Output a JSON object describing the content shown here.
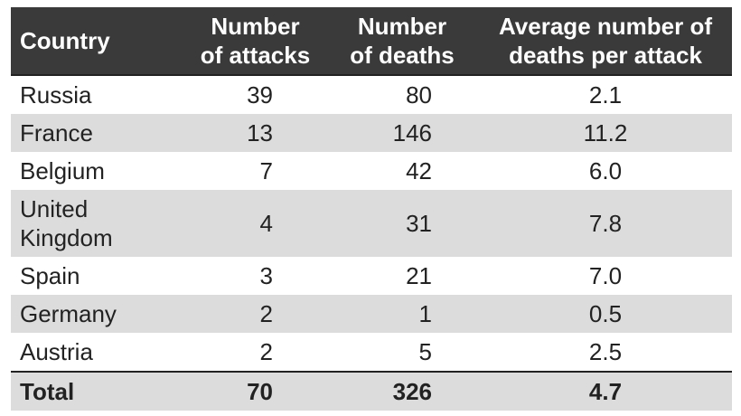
{
  "table": {
    "headers": [
      [
        "Country"
      ],
      [
        "Number",
        "of attacks"
      ],
      [
        "Number",
        "of deaths"
      ],
      [
        "Average number of",
        "deaths per attack"
      ]
    ],
    "rows": [
      [
        "Russia",
        "39",
        "80",
        "2.1"
      ],
      [
        "France",
        "13",
        "146",
        "11.2"
      ],
      [
        "Belgium",
        "7",
        "42",
        "6.0"
      ],
      [
        "United Kingdom",
        "4",
        "31",
        "7.8"
      ],
      [
        "Spain",
        "3",
        "21",
        "7.0"
      ],
      [
        "Germany",
        "2",
        "1",
        "0.5"
      ],
      [
        "Austria",
        "2",
        "5",
        "2.5"
      ]
    ],
    "total": [
      "Total",
      "70",
      "326",
      "4.7"
    ]
  }
}
